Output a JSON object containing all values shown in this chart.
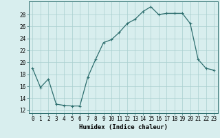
{
  "x": [
    0,
    1,
    2,
    3,
    4,
    5,
    6,
    7,
    8,
    9,
    10,
    11,
    12,
    13,
    14,
    15,
    16,
    17,
    18,
    19,
    20,
    21,
    22,
    23
  ],
  "y": [
    19,
    15.8,
    17.2,
    13.0,
    12.8,
    12.7,
    12.7,
    17.5,
    20.5,
    23.3,
    23.8,
    25.0,
    26.5,
    27.2,
    28.5,
    29.3,
    28.0,
    28.2,
    28.2,
    28.2,
    26.5,
    20.5,
    19.0,
    18.7
  ],
  "line_color": "#2d6e6e",
  "marker": "+",
  "marker_size": 3,
  "bg_color": "#d8eeee",
  "grid_color": "#aacfcf",
  "ylabel_ticks": [
    12,
    14,
    16,
    18,
    20,
    22,
    24,
    26,
    28
  ],
  "xlabel": "Humidex (Indice chaleur)",
  "ylim": [
    11.5,
    30.2
  ],
  "xlim": [
    -0.5,
    23.5
  ],
  "xticks": [
    0,
    1,
    2,
    3,
    4,
    5,
    6,
    7,
    8,
    9,
    10,
    11,
    12,
    13,
    14,
    15,
    16,
    17,
    18,
    19,
    20,
    21,
    22,
    23
  ],
  "tick_fontsize": 5.5,
  "xlabel_fontsize": 6.5,
  "linewidth": 0.9,
  "markeredgewidth": 0.8
}
